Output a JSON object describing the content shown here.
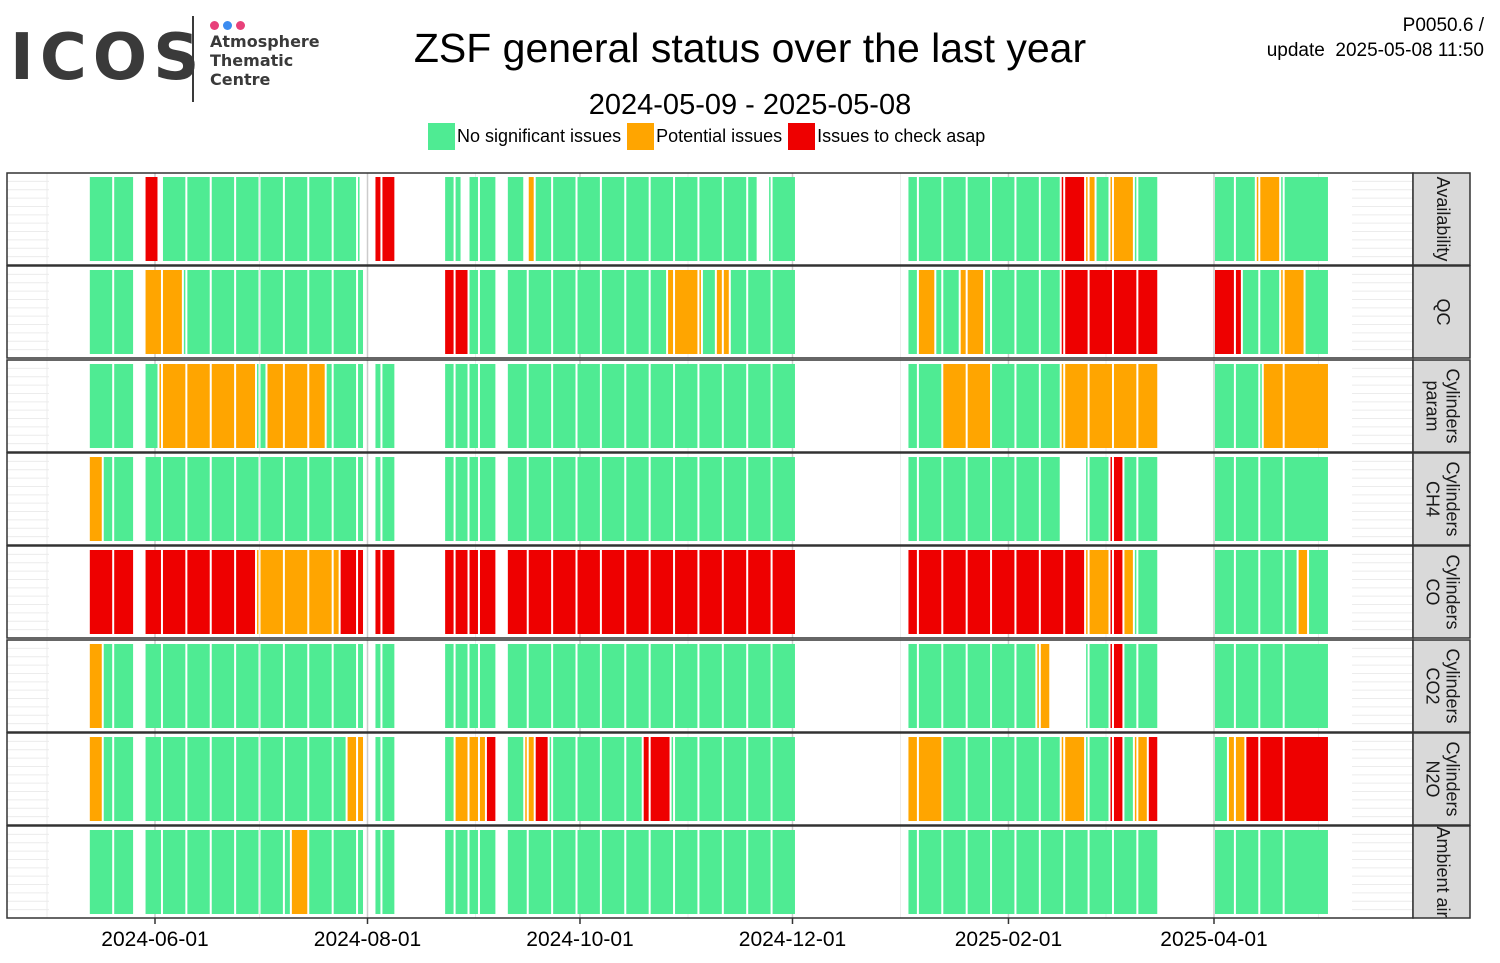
{
  "header": {
    "logo_text": "ICOS",
    "logo_lines": [
      "Atmosphere",
      "Thematic",
      "Centre"
    ],
    "title": "ZSF general status over the last year",
    "subtitle": "2024-05-09 - 2025-05-08",
    "corner_line1": "P0050.6 /",
    "corner_line2": "update  2025-05-08 11:50"
  },
  "colors": {
    "ok": "#4feb93",
    "warn": "#ffa500",
    "err": "#ee0000",
    "panel_border": "#333333",
    "strip_bg": "#d9d9d9",
    "grid_major": "#cccccc",
    "grid_minor": "#ececec",
    "logo_dots": [
      "#e8417a",
      "#3c8cf0",
      "#e8417a"
    ]
  },
  "legend": [
    {
      "label": "No significant issues",
      "status": "ok"
    },
    {
      "label": "Potential issues",
      "status": "warn"
    },
    {
      "label": "Issues to check asap",
      "status": "err"
    }
  ],
  "chart_data": {
    "type": "heatmap",
    "title": "ZSF general status over the last year",
    "subtitle": "2024-05-09 - 2025-05-08",
    "x_range": [
      "2024-05-09",
      "2025-05-08"
    ],
    "x_ticks": [
      "2024-06-01",
      "2024-08-01",
      "2024-10-01",
      "2024-12-01",
      "2025-02-01",
      "2025-04-01"
    ],
    "status_categories": [
      "No significant issues",
      "Potential issues",
      "Issues to check asap"
    ],
    "week_starts": [
      "2024-05-13",
      "2024-05-20",
      "2024-05-27",
      "2024-06-03",
      "2024-06-10",
      "2024-06-17",
      "2024-06-24",
      "2024-07-01",
      "2024-07-08",
      "2024-07-15",
      "2024-07-22",
      "2024-07-29",
      "2024-08-05",
      "2024-08-12",
      "2024-08-19",
      "2024-08-26",
      "2024-09-02",
      "2024-09-09",
      "2024-09-16",
      "2024-09-23",
      "2024-09-30",
      "2024-10-07",
      "2024-10-14",
      "2024-10-21",
      "2024-10-28",
      "2024-11-04",
      "2024-11-11",
      "2024-11-18",
      "2024-11-25",
      "2024-12-02",
      "2024-12-09",
      "2024-12-16",
      "2024-12-23",
      "2024-12-30",
      "2025-01-06",
      "2025-01-13",
      "2025-01-20",
      "2025-01-27",
      "2025-02-03",
      "2025-02-10",
      "2025-02-17",
      "2025-02-24",
      "2025-03-03",
      "2025-03-10",
      "2025-03-17",
      "2025-03-24",
      "2025-03-31",
      "2025-04-07",
      "2025-04-14",
      "2025-04-21"
    ],
    "rows": [
      {
        "name": "Availability",
        "runs": [
          [
            "2024-05-13",
            "2024-05-26",
            "ok"
          ],
          [
            "2024-05-29",
            "2024-06-02",
            "err"
          ],
          [
            "2024-06-03",
            "2024-07-30",
            "ok"
          ],
          [
            "2024-08-03",
            "2024-08-09",
            "err"
          ],
          [
            "2024-08-23",
            "2024-08-28",
            "ok"
          ],
          [
            "2024-08-30",
            "2024-09-07",
            "ok"
          ],
          [
            "2024-09-10",
            "2024-09-15",
            "ok"
          ],
          [
            "2024-09-16",
            "2024-09-18",
            "warn"
          ],
          [
            "2024-09-18",
            "2024-11-21",
            "ok"
          ],
          [
            "2024-11-24",
            "2024-12-02",
            "ok"
          ],
          [
            "2025-01-03",
            "2025-02-16",
            "ok"
          ],
          [
            "2025-02-16",
            "2025-02-23",
            "err"
          ],
          [
            "2025-02-23",
            "2025-02-26",
            "warn"
          ],
          [
            "2025-02-26",
            "2025-03-02",
            "ok"
          ],
          [
            "2025-03-02",
            "2025-03-09",
            "warn"
          ],
          [
            "2025-03-09",
            "2025-03-16",
            "ok"
          ],
          [
            "2025-04-01",
            "2025-04-13",
            "ok"
          ],
          [
            "2025-04-13",
            "2025-04-20",
            "warn"
          ],
          [
            "2025-04-20",
            "2025-05-04",
            "ok"
          ]
        ]
      },
      {
        "name": "QC",
        "runs": [
          [
            "2024-05-13",
            "2024-05-26",
            "ok"
          ],
          [
            "2024-05-29",
            "2024-06-09",
            "warn"
          ],
          [
            "2024-06-09",
            "2024-07-31",
            "ok"
          ],
          [
            "2024-08-23",
            "2024-08-30",
            "err"
          ],
          [
            "2024-08-30",
            "2024-09-07",
            "ok"
          ],
          [
            "2024-09-10",
            "2024-10-26",
            "ok"
          ],
          [
            "2024-10-26",
            "2024-11-05",
            "warn"
          ],
          [
            "2024-11-05",
            "2024-11-09",
            "ok"
          ],
          [
            "2024-11-09",
            "2024-11-13",
            "warn"
          ],
          [
            "2024-11-13",
            "2024-12-02",
            "ok"
          ],
          [
            "2025-01-03",
            "2025-01-06",
            "ok"
          ],
          [
            "2025-01-06",
            "2025-01-11",
            "warn"
          ],
          [
            "2025-01-11",
            "2025-01-18",
            "ok"
          ],
          [
            "2025-01-18",
            "2025-01-25",
            "warn"
          ],
          [
            "2025-01-25",
            "2025-02-16",
            "ok"
          ],
          [
            "2025-02-16",
            "2025-03-16",
            "err"
          ],
          [
            "2025-04-01",
            "2025-04-09",
            "err"
          ],
          [
            "2025-04-09",
            "2025-04-20",
            "ok"
          ],
          [
            "2025-04-20",
            "2025-04-27",
            "warn"
          ],
          [
            "2025-04-27",
            "2025-05-04",
            "ok"
          ]
        ]
      },
      {
        "name": "Cylinders\nparam",
        "runs": [
          [
            "2024-05-13",
            "2024-05-26",
            "ok"
          ],
          [
            "2024-05-29",
            "2024-06-02",
            "ok"
          ],
          [
            "2024-06-02",
            "2024-06-30",
            "warn"
          ],
          [
            "2024-06-30",
            "2024-07-03",
            "ok"
          ],
          [
            "2024-07-03",
            "2024-07-20",
            "warn"
          ],
          [
            "2024-07-20",
            "2024-07-31",
            "ok"
          ],
          [
            "2024-08-03",
            "2024-08-09",
            "ok"
          ],
          [
            "2024-08-23",
            "2024-08-30",
            "ok"
          ],
          [
            "2024-08-30",
            "2024-09-07",
            "ok"
          ],
          [
            "2024-09-10",
            "2024-12-02",
            "ok"
          ],
          [
            "2025-01-03",
            "2025-01-13",
            "ok"
          ],
          [
            "2025-01-13",
            "2025-01-27",
            "warn"
          ],
          [
            "2025-01-27",
            "2025-02-16",
            "ok"
          ],
          [
            "2025-02-16",
            "2025-03-16",
            "warn"
          ],
          [
            "2025-04-01",
            "2025-04-15",
            "ok"
          ],
          [
            "2025-04-15",
            "2025-05-04",
            "warn"
          ]
        ]
      },
      {
        "name": "Cylinders\nCH4",
        "runs": [
          [
            "2024-05-13",
            "2024-05-17",
            "warn"
          ],
          [
            "2024-05-17",
            "2024-05-26",
            "ok"
          ],
          [
            "2024-05-29",
            "2024-07-31",
            "ok"
          ],
          [
            "2024-08-03",
            "2024-08-09",
            "ok"
          ],
          [
            "2024-08-23",
            "2024-08-30",
            "ok"
          ],
          [
            "2024-08-30",
            "2024-09-07",
            "ok"
          ],
          [
            "2024-09-10",
            "2024-12-02",
            "ok"
          ],
          [
            "2025-01-03",
            "2025-02-16",
            "ok"
          ],
          [
            "2025-02-23",
            "2025-03-02",
            "ok"
          ],
          [
            "2025-03-02",
            "2025-03-06",
            "err"
          ],
          [
            "2025-03-06",
            "2025-03-16",
            "ok"
          ],
          [
            "2025-04-01",
            "2025-05-04",
            "ok"
          ]
        ]
      },
      {
        "name": "Cylinders\nCO",
        "runs": [
          [
            "2024-05-13",
            "2024-05-26",
            "err"
          ],
          [
            "2024-05-29",
            "2024-06-30",
            "err"
          ],
          [
            "2024-06-30",
            "2024-07-24",
            "warn"
          ],
          [
            "2024-07-24",
            "2024-07-31",
            "err"
          ],
          [
            "2024-08-03",
            "2024-08-09",
            "err"
          ],
          [
            "2024-08-23",
            "2024-08-30",
            "err"
          ],
          [
            "2024-08-30",
            "2024-09-07",
            "err"
          ],
          [
            "2024-09-10",
            "2024-12-02",
            "err"
          ],
          [
            "2025-01-03",
            "2025-02-23",
            "err"
          ],
          [
            "2025-02-23",
            "2025-03-02",
            "warn"
          ],
          [
            "2025-03-02",
            "2025-03-06",
            "err"
          ],
          [
            "2025-03-06",
            "2025-03-09",
            "warn"
          ],
          [
            "2025-03-09",
            "2025-03-16",
            "ok"
          ],
          [
            "2025-04-01",
            "2025-04-25",
            "ok"
          ],
          [
            "2025-04-25",
            "2025-04-28",
            "warn"
          ],
          [
            "2025-04-28",
            "2025-05-04",
            "ok"
          ]
        ]
      },
      {
        "name": "Cylinders\nCO2",
        "runs": [
          [
            "2024-05-13",
            "2024-05-17",
            "warn"
          ],
          [
            "2024-05-17",
            "2024-05-26",
            "ok"
          ],
          [
            "2024-05-29",
            "2024-07-31",
            "ok"
          ],
          [
            "2024-08-03",
            "2024-08-09",
            "ok"
          ],
          [
            "2024-08-23",
            "2024-08-30",
            "ok"
          ],
          [
            "2024-08-30",
            "2024-09-07",
            "ok"
          ],
          [
            "2024-09-10",
            "2024-12-02",
            "ok"
          ],
          [
            "2025-01-03",
            "2025-02-09",
            "ok"
          ],
          [
            "2025-02-09",
            "2025-02-13",
            "warn"
          ],
          [
            "2025-02-23",
            "2025-03-02",
            "ok"
          ],
          [
            "2025-03-02",
            "2025-03-06",
            "err"
          ],
          [
            "2025-03-06",
            "2025-03-16",
            "ok"
          ],
          [
            "2025-04-01",
            "2025-05-04",
            "ok"
          ]
        ]
      },
      {
        "name": "Cylinders\nN2O",
        "runs": [
          [
            "2024-05-13",
            "2024-05-17",
            "warn"
          ],
          [
            "2024-05-17",
            "2024-05-26",
            "ok"
          ],
          [
            "2024-05-29",
            "2024-07-26",
            "ok"
          ],
          [
            "2024-07-26",
            "2024-07-31",
            "warn"
          ],
          [
            "2024-08-03",
            "2024-08-09",
            "ok"
          ],
          [
            "2024-08-23",
            "2024-08-26",
            "ok"
          ],
          [
            "2024-08-26",
            "2024-08-30",
            "warn"
          ],
          [
            "2024-08-30",
            "2024-09-04",
            "warn"
          ],
          [
            "2024-09-04",
            "2024-09-07",
            "err"
          ],
          [
            "2024-09-10",
            "2024-09-15",
            "ok"
          ],
          [
            "2024-09-15",
            "2024-09-18",
            "warn"
          ],
          [
            "2024-09-18",
            "2024-09-22",
            "err"
          ],
          [
            "2024-09-22",
            "2024-10-19",
            "ok"
          ],
          [
            "2024-10-19",
            "2024-10-27",
            "err"
          ],
          [
            "2024-10-27",
            "2024-12-02",
            "ok"
          ],
          [
            "2025-01-03",
            "2025-01-13",
            "warn"
          ],
          [
            "2025-01-13",
            "2025-02-16",
            "ok"
          ],
          [
            "2025-02-16",
            "2025-02-23",
            "warn"
          ],
          [
            "2025-02-23",
            "2025-03-02",
            "ok"
          ],
          [
            "2025-03-02",
            "2025-03-06",
            "err"
          ],
          [
            "2025-03-06",
            "2025-03-09",
            "ok"
          ],
          [
            "2025-03-09",
            "2025-03-13",
            "warn"
          ],
          [
            "2025-03-13",
            "2025-03-16",
            "err"
          ],
          [
            "2025-04-01",
            "2025-04-05",
            "ok"
          ],
          [
            "2025-04-05",
            "2025-04-10",
            "warn"
          ],
          [
            "2025-04-10",
            "2025-05-04",
            "err"
          ]
        ]
      },
      {
        "name": "Ambient air",
        "runs": [
          [
            "2024-05-13",
            "2024-05-26",
            "ok"
          ],
          [
            "2024-05-29",
            "2024-07-10",
            "ok"
          ],
          [
            "2024-07-10",
            "2024-07-15",
            "warn"
          ],
          [
            "2024-07-15",
            "2024-07-31",
            "ok"
          ],
          [
            "2024-08-03",
            "2024-08-09",
            "ok"
          ],
          [
            "2024-08-23",
            "2024-08-30",
            "ok"
          ],
          [
            "2024-08-30",
            "2024-09-07",
            "ok"
          ],
          [
            "2024-09-10",
            "2024-12-02",
            "ok"
          ],
          [
            "2025-01-03",
            "2025-03-16",
            "ok"
          ],
          [
            "2025-04-01",
            "2025-05-04",
            "ok"
          ]
        ]
      }
    ]
  }
}
